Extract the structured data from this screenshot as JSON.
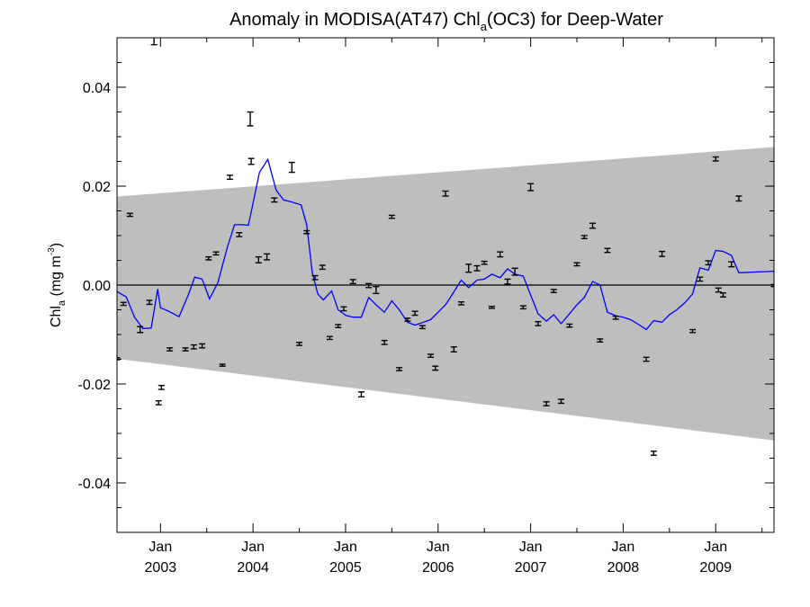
{
  "chart_data": {
    "type": "line",
    "title_main": "Anomaly in MODISA(AT47) Chl",
    "title_sub": "a",
    "title_rest": "(OC3) for Deep-Water",
    "ylabel_main": "Chl",
    "ylabel_sub": "a",
    "ylabel_units": " (mg m",
    "ylabel_exp": "-3",
    "ylabel_close": ")",
    "xlim": [
      2002.53,
      2009.63
    ],
    "ylim": [
      -0.05,
      0.05
    ],
    "yticks": [
      {
        "value": 0.04,
        "label": "0.04"
      },
      {
        "value": 0.02,
        "label": "0.02"
      },
      {
        "value": 0.0,
        "label": "0.00"
      },
      {
        "value": -0.02,
        "label": "-0.02"
      },
      {
        "value": -0.04,
        "label": "-0.04"
      }
    ],
    "xticks": [
      {
        "value": 2003.0,
        "month": "Jan",
        "year": "2003"
      },
      {
        "value": 2004.0,
        "month": "Jan",
        "year": "2004"
      },
      {
        "value": 2005.0,
        "month": "Jan",
        "year": "2005"
      },
      {
        "value": 2006.0,
        "month": "Jan",
        "year": "2006"
      },
      {
        "value": 2007.0,
        "month": "Jan",
        "year": "2007"
      },
      {
        "value": 2008.0,
        "month": "Jan",
        "year": "2008"
      },
      {
        "value": 2009.0,
        "month": "Jan",
        "year": "2009"
      }
    ],
    "envelope": {
      "x": [
        2002.53,
        2009.63
      ],
      "upper": [
        0.0179,
        0.0279
      ],
      "lower": [
        -0.0149,
        -0.0314
      ],
      "color": "#bebebe"
    },
    "zero_line": 0.0,
    "series": [
      {
        "kind": "line",
        "color": "#0000ff",
        "points": [
          [
            2002.53,
            -0.0013
          ],
          [
            2002.63,
            -0.0024
          ],
          [
            2002.72,
            -0.0065
          ],
          [
            2002.81,
            -0.0088
          ],
          [
            2002.9,
            -0.0087
          ],
          [
            2002.97,
            -0.0008
          ],
          [
            2003.0,
            -0.0046
          ],
          [
            2003.08,
            -0.0052
          ],
          [
            2003.2,
            -0.0064
          ],
          [
            2003.3,
            -0.002
          ],
          [
            2003.37,
            0.0016
          ],
          [
            2003.45,
            0.0012
          ],
          [
            2003.53,
            -0.0028
          ],
          [
            2003.62,
            0.0005
          ],
          [
            2003.72,
            0.0075
          ],
          [
            2003.8,
            0.0122
          ],
          [
            2003.88,
            0.0122
          ],
          [
            2003.95,
            0.0121
          ],
          [
            2004.0,
            0.0165
          ],
          [
            2004.07,
            0.0228
          ],
          [
            2004.16,
            0.0254
          ],
          [
            2004.25,
            0.0192
          ],
          [
            2004.33,
            0.0172
          ],
          [
            2004.42,
            0.0168
          ],
          [
            2004.52,
            0.0162
          ],
          [
            2004.58,
            0.0122
          ],
          [
            2004.64,
            0.0026
          ],
          [
            2004.7,
            -0.0018
          ],
          [
            2004.76,
            -0.003
          ],
          [
            2004.85,
            -0.0012
          ],
          [
            2004.92,
            -0.005
          ],
          [
            2005.0,
            -0.0061
          ],
          [
            2005.08,
            -0.0065
          ],
          [
            2005.17,
            -0.0065
          ],
          [
            2005.25,
            -0.0025
          ],
          [
            2005.33,
            -0.004
          ],
          [
            2005.42,
            -0.0055
          ],
          [
            2005.5,
            -0.0032
          ],
          [
            2005.58,
            -0.005
          ],
          [
            2005.67,
            -0.0075
          ],
          [
            2005.75,
            -0.0081
          ],
          [
            2005.83,
            -0.0076
          ],
          [
            2005.92,
            -0.007
          ],
          [
            2006.0,
            -0.0055
          ],
          [
            2006.08,
            -0.004
          ],
          [
            2006.15,
            -0.002
          ],
          [
            2006.25,
            0.001
          ],
          [
            2006.33,
            -0.0005
          ],
          [
            2006.42,
            0.001
          ],
          [
            2006.5,
            0.0012
          ],
          [
            2006.58,
            0.0022
          ],
          [
            2006.67,
            0.0015
          ],
          [
            2006.75,
            0.0033
          ],
          [
            2006.83,
            0.0022
          ],
          [
            2006.92,
            0.0018
          ],
          [
            2007.0,
            -0.002
          ],
          [
            2007.08,
            -0.0058
          ],
          [
            2007.17,
            -0.0073
          ],
          [
            2007.25,
            -0.006
          ],
          [
            2007.33,
            -0.0078
          ],
          [
            2007.42,
            -0.0058
          ],
          [
            2007.5,
            -0.004
          ],
          [
            2007.58,
            -0.0025
          ],
          [
            2007.67,
            0.0007
          ],
          [
            2007.75,
            0.0
          ],
          [
            2007.83,
            -0.0055
          ],
          [
            2007.92,
            -0.0062
          ],
          [
            2008.0,
            -0.0065
          ],
          [
            2008.08,
            -0.007
          ],
          [
            2008.17,
            -0.008
          ],
          [
            2008.25,
            -0.009
          ],
          [
            2008.33,
            -0.0072
          ],
          [
            2008.42,
            -0.0075
          ],
          [
            2008.5,
            -0.006
          ],
          [
            2008.58,
            -0.005
          ],
          [
            2008.67,
            -0.0035
          ],
          [
            2008.75,
            -0.0018
          ],
          [
            2008.83,
            0.0035
          ],
          [
            2008.92,
            0.003
          ],
          [
            2009.0,
            0.007
          ],
          [
            2009.08,
            0.0068
          ],
          [
            2009.17,
            0.006
          ],
          [
            2009.25,
            0.0025
          ],
          [
            2009.63,
            0.0028
          ]
        ]
      },
      {
        "kind": "errorbars",
        "color": "#000000",
        "points": [
          [
            2002.53,
            -0.0149,
            0.0002
          ],
          [
            2002.6,
            -0.0038,
            0.0003
          ],
          [
            2002.67,
            0.0142,
            0.0003
          ],
          [
            2002.78,
            -0.009,
            0.0006
          ],
          [
            2002.88,
            -0.0035,
            0.0004
          ],
          [
            2002.93,
            0.0495,
            0.0009
          ],
          [
            2002.98,
            -0.0238,
            0.0004
          ],
          [
            2003.01,
            -0.0207,
            0.0004
          ],
          [
            2003.1,
            -0.013,
            0.0003
          ],
          [
            2003.27,
            -0.013,
            0.0003
          ],
          [
            2003.36,
            -0.0125,
            0.0004
          ],
          [
            2003.45,
            -0.0123,
            0.0004
          ],
          [
            2003.52,
            0.0054,
            0.0003
          ],
          [
            2003.6,
            0.0064,
            0.0003
          ],
          [
            2003.67,
            -0.0162,
            0.0002
          ],
          [
            2003.75,
            0.0218,
            0.0004
          ],
          [
            2003.85,
            0.0102,
            0.0004
          ],
          [
            2003.97,
            0.0336,
            0.0014
          ],
          [
            2003.98,
            0.025,
            0.0006
          ],
          [
            2004.06,
            0.0051,
            0.0006
          ],
          [
            2004.15,
            0.0057,
            0.0006
          ],
          [
            2004.23,
            0.0172,
            0.0004
          ],
          [
            2004.42,
            0.0238,
            0.001
          ],
          [
            2004.5,
            -0.0119,
            0.0003
          ],
          [
            2004.58,
            0.0107,
            0.0003
          ],
          [
            2004.67,
            0.0015,
            0.0004
          ],
          [
            2004.75,
            0.0036,
            0.0004
          ],
          [
            2004.83,
            -0.0107,
            0.0003
          ],
          [
            2004.92,
            -0.0083,
            0.0003
          ],
          [
            2004.98,
            -0.0048,
            0.0004
          ],
          [
            2005.08,
            0.0007,
            0.0004
          ],
          [
            2005.17,
            -0.0221,
            0.0005
          ],
          [
            2005.25,
            -0.0001,
            0.0004
          ],
          [
            2005.33,
            -0.001,
            0.0007
          ],
          [
            2005.42,
            -0.0116,
            0.0004
          ],
          [
            2005.5,
            0.0138,
            0.0003
          ],
          [
            2005.58,
            -0.017,
            0.0003
          ],
          [
            2005.67,
            -0.007,
            0.0003
          ],
          [
            2005.75,
            -0.0057,
            0.0004
          ],
          [
            2005.83,
            -0.0085,
            0.0003
          ],
          [
            2005.92,
            -0.0143,
            0.0003
          ],
          [
            2005.97,
            -0.0168,
            0.0004
          ],
          [
            2006.08,
            0.0185,
            0.0005
          ],
          [
            2006.17,
            -0.013,
            0.0005
          ],
          [
            2006.25,
            -0.0037,
            0.0003
          ],
          [
            2006.33,
            0.0034,
            0.0008
          ],
          [
            2006.42,
            0.0034,
            0.0005
          ],
          [
            2006.5,
            0.0045,
            0.0003
          ],
          [
            2006.58,
            -0.0045,
            0.0002
          ],
          [
            2006.67,
            0.0062,
            0.0005
          ],
          [
            2006.75,
            0.0007,
            0.0005
          ],
          [
            2006.83,
            0.0027,
            0.0007
          ],
          [
            2006.92,
            -0.0045,
            0.0003
          ],
          [
            2007.0,
            0.0198,
            0.0007
          ],
          [
            2007.08,
            -0.0078,
            0.0004
          ],
          [
            2007.17,
            -0.024,
            0.0004
          ],
          [
            2007.25,
            -0.0012,
            0.0003
          ],
          [
            2007.33,
            -0.0235,
            0.0004
          ],
          [
            2007.42,
            -0.0082,
            0.0003
          ],
          [
            2007.5,
            0.0042,
            0.0003
          ],
          [
            2007.58,
            0.0097,
            0.0003
          ],
          [
            2007.67,
            0.012,
            0.0005
          ],
          [
            2007.75,
            -0.0112,
            0.0003
          ],
          [
            2007.83,
            0.007,
            0.0004
          ],
          [
            2007.92,
            -0.0066,
            0.0003
          ],
          [
            2008.25,
            -0.015,
            0.0004
          ],
          [
            2008.33,
            -0.034,
            0.0004
          ],
          [
            2008.42,
            0.0063,
            0.0005
          ],
          [
            2008.75,
            -0.0093,
            0.0003
          ],
          [
            2008.83,
            0.0012,
            0.0004
          ],
          [
            2008.92,
            0.0045,
            0.0004
          ],
          [
            2009.0,
            0.0255,
            0.0004
          ],
          [
            2009.03,
            -0.001,
            0.0004
          ],
          [
            2009.08,
            -0.002,
            0.0004
          ],
          [
            2009.17,
            0.0042,
            0.0005
          ],
          [
            2009.25,
            0.0175,
            0.0005
          ],
          [
            2009.63,
            -0.0001,
            0.0002
          ]
        ]
      }
    ]
  }
}
